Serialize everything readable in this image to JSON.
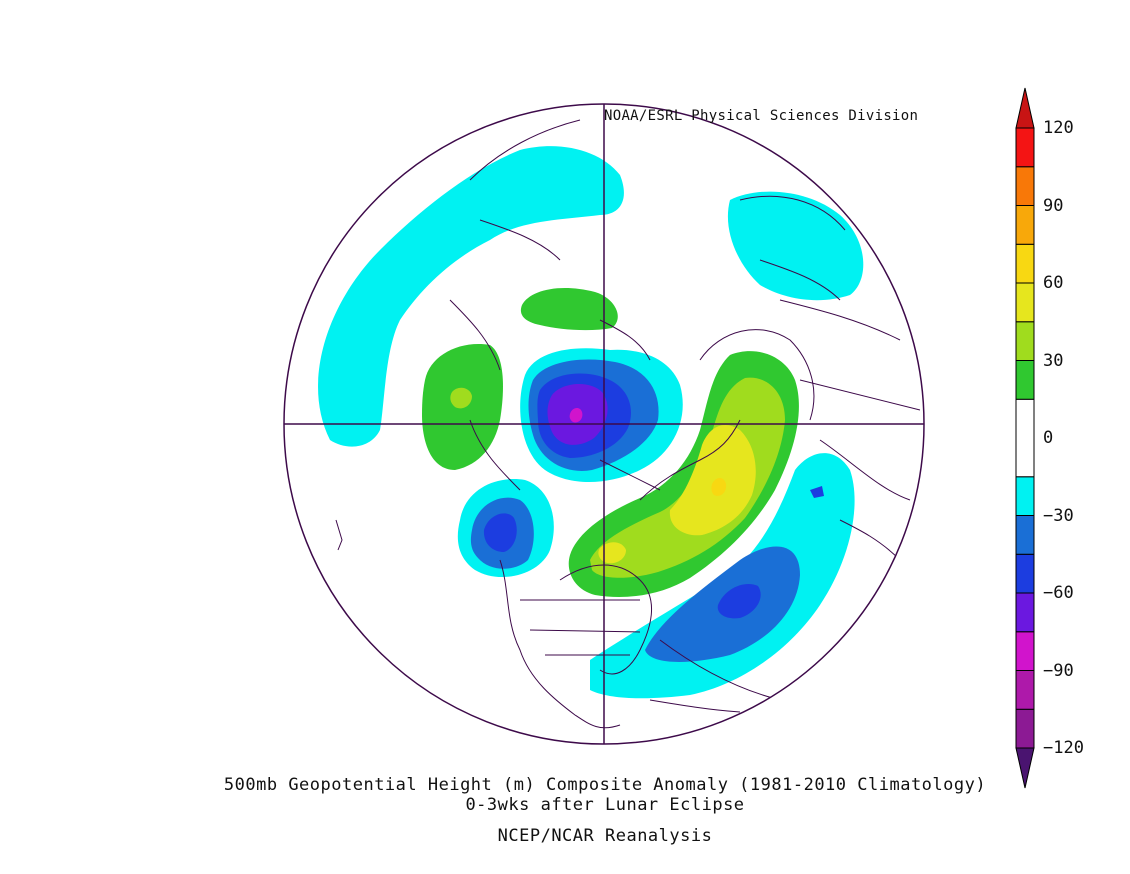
{
  "map": {
    "credit": "NOAA/ESRL Physical Sciences Division",
    "title": "500mb Geopotential Height (m) Composite Anomaly (1981-2010 Climatology)",
    "subtitle": "0-3wks after Lunar Eclipse",
    "source": "NCEP/NCAR Reanalysis",
    "projection": "north-polar-stereographic",
    "variable": "500mb Geopotential Height Anomaly",
    "unit": "m"
  },
  "colorbar": {
    "levels": [
      {
        "min": -135,
        "max": -120,
        "color": "#4a1470"
      },
      {
        "min": -120,
        "max": -105,
        "color": "#8c1a94"
      },
      {
        "min": -105,
        "max": -90,
        "color": "#ae19aa"
      },
      {
        "min": -90,
        "max": -75,
        "color": "#d114cc"
      },
      {
        "min": -75,
        "max": -60,
        "color": "#6b18e0"
      },
      {
        "min": -60,
        "max": -45,
        "color": "#1c3de0"
      },
      {
        "min": -45,
        "max": -30,
        "color": "#1a6fd6"
      },
      {
        "min": -30,
        "max": -15,
        "color": "#00f2f2"
      },
      {
        "min": -15,
        "max": 15,
        "color": "#ffffff"
      },
      {
        "min": 15,
        "max": 30,
        "color": "#30c830"
      },
      {
        "min": 30,
        "max": 45,
        "color": "#a0dc1e"
      },
      {
        "min": 45,
        "max": 60,
        "color": "#e6e61e"
      },
      {
        "min": 60,
        "max": 75,
        "color": "#f8d812"
      },
      {
        "min": 75,
        "max": 90,
        "color": "#f8a80a"
      },
      {
        "min": 90,
        "max": 105,
        "color": "#f87808"
      },
      {
        "min": 105,
        "max": 120,
        "color": "#f41414"
      },
      {
        "min": 120,
        "max": 135,
        "color": "#c81414"
      }
    ],
    "tick_labels": [
      "120",
      "90",
      "60",
      "30",
      "0",
      "-30",
      "-60",
      "-90",
      "-120"
    ]
  }
}
